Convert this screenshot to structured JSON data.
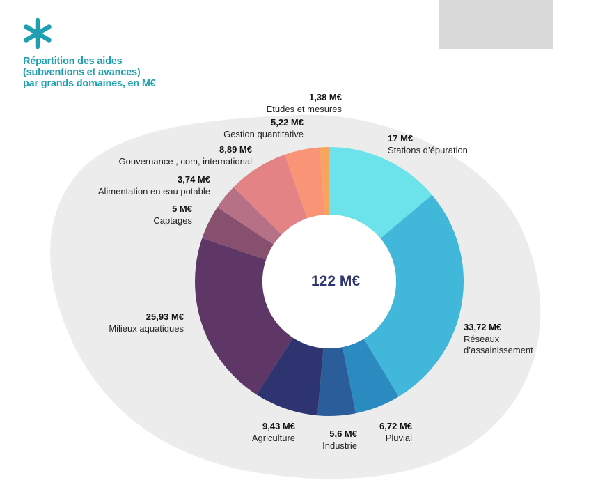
{
  "title_lines": [
    "Répartition des aides",
    "(subventions et avances)",
    "par grands domaines, en M€"
  ],
  "chart_data": {
    "type": "pie",
    "donut": true,
    "center_label": "122 M€",
    "slices": [
      {
        "name": "Stations d’épuration",
        "value": 17,
        "value_label": "17 M€",
        "color": "#6ce3ea"
      },
      {
        "name": "Réseaux d’assainissement",
        "name_lines": [
          "Réseaux",
          "d’assainissement"
        ],
        "value": 33.72,
        "value_label": "33,72 M€",
        "color": "#41b8d9"
      },
      {
        "name": "Pluvial",
        "value": 6.72,
        "value_label": "6,72 M€",
        "color": "#2b8abf"
      },
      {
        "name": "Industrie",
        "value": 5.6,
        "value_label": "5,6 M€",
        "color": "#2b5d9a"
      },
      {
        "name": "Agriculture",
        "value": 9.43,
        "value_label": "9,43 M€",
        "color": "#2e3470"
      },
      {
        "name": "Milieux aquatiques",
        "value": 25.93,
        "value_label": "25,93 M€",
        "color": "#5f3766"
      },
      {
        "name": "Captages",
        "value": 5,
        "value_label": "5 M€",
        "color": "#88506f"
      },
      {
        "name": "Alimentation en eau potable",
        "value": 3.74,
        "value_label": "3,74 M€",
        "color": "#b77186"
      },
      {
        "name": "Gouvernance , com, international",
        "value": 8.89,
        "value_label": "8,89 M€",
        "color": "#e38385"
      },
      {
        "name": "Gestion quantitative",
        "value": 5.22,
        "value_label": "5,22 M€",
        "color": "#f99476"
      },
      {
        "name": "Etudes et mesures",
        "value": 1.38,
        "value_label": "1,38 M€",
        "color": "#f9a45c"
      }
    ]
  },
  "colors": {
    "background_blob": "#ececec",
    "logo": "#1f9fb0",
    "title": "#1f9fb0",
    "header_box": "#d9d9d9"
  },
  "icons": {
    "logo": "asterisk-icon"
  }
}
